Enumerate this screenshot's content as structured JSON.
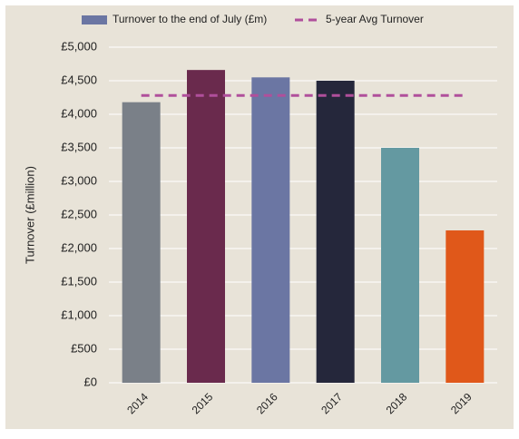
{
  "chart_data": {
    "type": "bar",
    "y_label": "Turnover (£million)",
    "categories": [
      "2014",
      "2015",
      "2016",
      "2017",
      "2018",
      "2019"
    ],
    "series": [
      {
        "name": "Turnover to the end of July (£m)",
        "color": "#6b76a3",
        "colors": [
          "#7a8088",
          "#6a2a4d",
          "#6b76a3",
          "#25273b",
          "#6499a1",
          "#e0581a"
        ],
        "values": [
          4180,
          4660,
          4550,
          4500,
          3500,
          2270
        ]
      },
      {
        "name": "5-year Avg Turnover",
        "type": "line",
        "color": "#b04f9b",
        "values": [
          4280,
          4280,
          4280,
          4280,
          4280,
          4280
        ]
      }
    ],
    "ylim": [
      0,
      5000
    ],
    "yticks": [
      {
        "value": 0,
        "label": "£0"
      },
      {
        "value": 500,
        "label": "£500"
      },
      {
        "value": 1000,
        "label": "£1,000"
      },
      {
        "value": 1500,
        "label": "£1,500"
      },
      {
        "value": 2000,
        "label": "£2,000"
      },
      {
        "value": 2500,
        "label": "£2,500"
      },
      {
        "value": 3000,
        "label": "£3,000"
      },
      {
        "value": 3500,
        "label": "£3,500"
      },
      {
        "value": 4000,
        "label": "£4,000"
      },
      {
        "value": 4500,
        "label": "£4,500"
      },
      {
        "value": 5000,
        "label": "£5,000"
      }
    ],
    "grid": true
  }
}
